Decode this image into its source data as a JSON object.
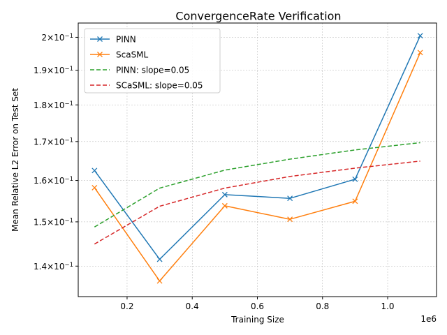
{
  "chart_data": {
    "type": "line",
    "title": "ConvergenceRate Verification",
    "xlabel": "Training Size",
    "ylabel": "Mean Relative L2 Error on Test Set",
    "x_offset_label": "1e6",
    "xlim": [
      0.05,
      1.15
    ],
    "ylim": [
      0.1335,
      0.2045
    ],
    "yscale": "log",
    "grid": true,
    "legend_position": "upper-left",
    "x_ticks": [
      0.2,
      0.4,
      0.6,
      0.8,
      1.0
    ],
    "x_tick_labels": [
      "0.2",
      "0.4",
      "0.6",
      "0.8",
      "1.0"
    ],
    "y_ticks": [
      {
        "value": 0.14,
        "mantissa": "1.4"
      },
      {
        "value": 0.15,
        "mantissa": "1.5"
      },
      {
        "value": 0.16,
        "mantissa": "1.6"
      },
      {
        "value": 0.17,
        "mantissa": "1.7"
      },
      {
        "value": 0.18,
        "mantissa": "1.8"
      },
      {
        "value": 0.19,
        "mantissa": "1.9"
      },
      {
        "value": 0.2,
        "mantissa": "2"
      }
    ],
    "y_tick_suffix": "×10",
    "y_tick_exponent": "−1",
    "x": [
      0.1,
      0.3,
      0.5,
      0.7,
      0.9,
      1.1
    ],
    "series": [
      {
        "name": "PINN",
        "values": [
          0.1625,
          0.1415,
          0.1565,
          0.1556,
          0.1603,
          0.2005
        ],
        "color": "#1f77b4",
        "style": "solid",
        "marker": "x"
      },
      {
        "name": "ScaSML",
        "values": [
          0.1582,
          0.1368,
          0.1538,
          0.1506,
          0.1549,
          0.1953
        ],
        "color": "#ff7f0e",
        "style": "solid",
        "marker": "x"
      },
      {
        "name": "PINN: slope=0.05",
        "values": [
          0.1488,
          0.1581,
          0.1626,
          0.1654,
          0.1678,
          0.1697
        ],
        "color": "#2ca02c",
        "style": "dashed",
        "marker": "none"
      },
      {
        "name": "SCaSML: slope=0.05",
        "values": [
          0.1449,
          0.1537,
          0.1581,
          0.161,
          0.1631,
          0.1649
        ],
        "color": "#d62728",
        "style": "dashed",
        "marker": "none"
      }
    ]
  }
}
